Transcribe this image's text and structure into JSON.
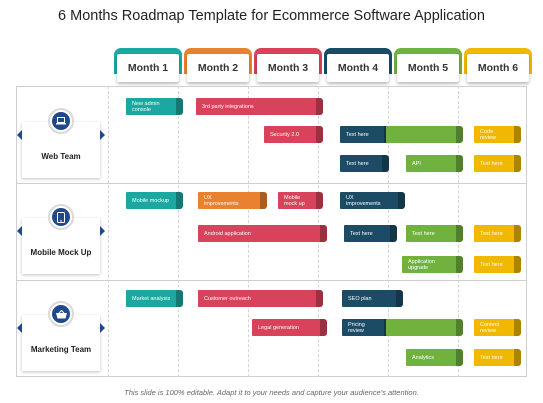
{
  "title": "6 Months Roadmap Template for Ecommerce Software Application",
  "footer": "This slide is 100% editable. Adapt it to your needs and capture your audience's attention.",
  "colors": {
    "teal": "#1aa8a0",
    "orange": "#e9822f",
    "red": "#d8425a",
    "navy": "#1c4b66",
    "green": "#71b23f",
    "yellow": "#f0b800"
  },
  "months": [
    {
      "label": "Month 1",
      "color": "teal"
    },
    {
      "label": "Month 2",
      "color": "orange"
    },
    {
      "label": "Month 3",
      "color": "red"
    },
    {
      "label": "Month 4",
      "color": "navy"
    },
    {
      "label": "Month 5",
      "color": "green"
    },
    {
      "label": "Month 6",
      "color": "yellow"
    }
  ],
  "teams": [
    {
      "label": "Web Team",
      "icon": "laptop-icon"
    },
    {
      "label": "Mobile Mock Up",
      "icon": "mobile-phone-icon"
    },
    {
      "label": "Marketing Team",
      "icon": "shopping-basket-icon"
    }
  ],
  "tasks": [
    {
      "label": "New admin console",
      "color": "teal"
    },
    {
      "label": "3rd party integrations",
      "color": "red"
    },
    {
      "label": "Security 2.0",
      "color": "red"
    },
    {
      "label": "Text here",
      "color": "navy"
    },
    {
      "label": "",
      "color": "green"
    },
    {
      "label": "Code review",
      "color": "yellow"
    },
    {
      "label": "Text here",
      "color": "navy"
    },
    {
      "label": "API",
      "color": "green"
    },
    {
      "label": "Text here",
      "color": "yellow"
    },
    {
      "label": "Mobile mockup",
      "color": "teal"
    },
    {
      "label": "UX\nimprovements",
      "color": "orange"
    },
    {
      "label": "Mobile\nmock up",
      "color": "red"
    },
    {
      "label": "UX\nimprovements",
      "color": "navy"
    },
    {
      "label": "Android application",
      "color": "red"
    },
    {
      "label": "Text here",
      "color": "navy"
    },
    {
      "label": "Text here",
      "color": "green"
    },
    {
      "label": "Text here",
      "color": "yellow"
    },
    {
      "label": "Application\nupgrade",
      "color": "green"
    },
    {
      "label": "Text here",
      "color": "yellow"
    },
    {
      "label": "Market analysis",
      "color": "teal"
    },
    {
      "label": "Customer outreach",
      "color": "red"
    },
    {
      "label": "SEO plan",
      "color": "navy"
    },
    {
      "label": "Legal generation",
      "color": "red"
    },
    {
      "label": "Pricing review",
      "color": "navy"
    },
    {
      "label": "",
      "color": "green"
    },
    {
      "label": "Content review",
      "color": "yellow"
    },
    {
      "label": "Analytics",
      "color": "green"
    },
    {
      "label": "Text here",
      "color": "yellow"
    }
  ]
}
